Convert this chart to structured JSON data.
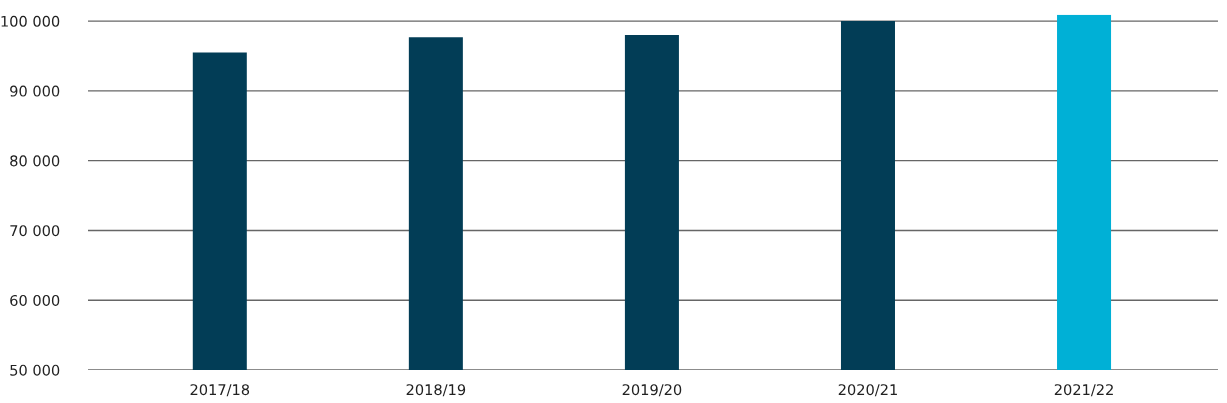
{
  "chart_data": {
    "type": "bar",
    "categories": [
      "2017/18",
      "2018/19",
      "2019/20",
      "2020/21",
      "2021/22"
    ],
    "values": [
      95500,
      97700,
      98000,
      100000,
      100900
    ],
    "colors": [
      "#023d56",
      "#023d56",
      "#023d56",
      "#023d56",
      "#00b0d6"
    ],
    "ylim": [
      50000,
      100900
    ],
    "yticks": [
      {
        "value": 50000,
        "label": "50 000"
      },
      {
        "value": 60000,
        "label": "60 000"
      },
      {
        "value": 70000,
        "label": "70 000"
      },
      {
        "value": 80000,
        "label": "80 000"
      },
      {
        "value": 90000,
        "label": "90 000"
      },
      {
        "value": 100000,
        "label": "100 000"
      }
    ],
    "grid": "y",
    "legend": false
  }
}
